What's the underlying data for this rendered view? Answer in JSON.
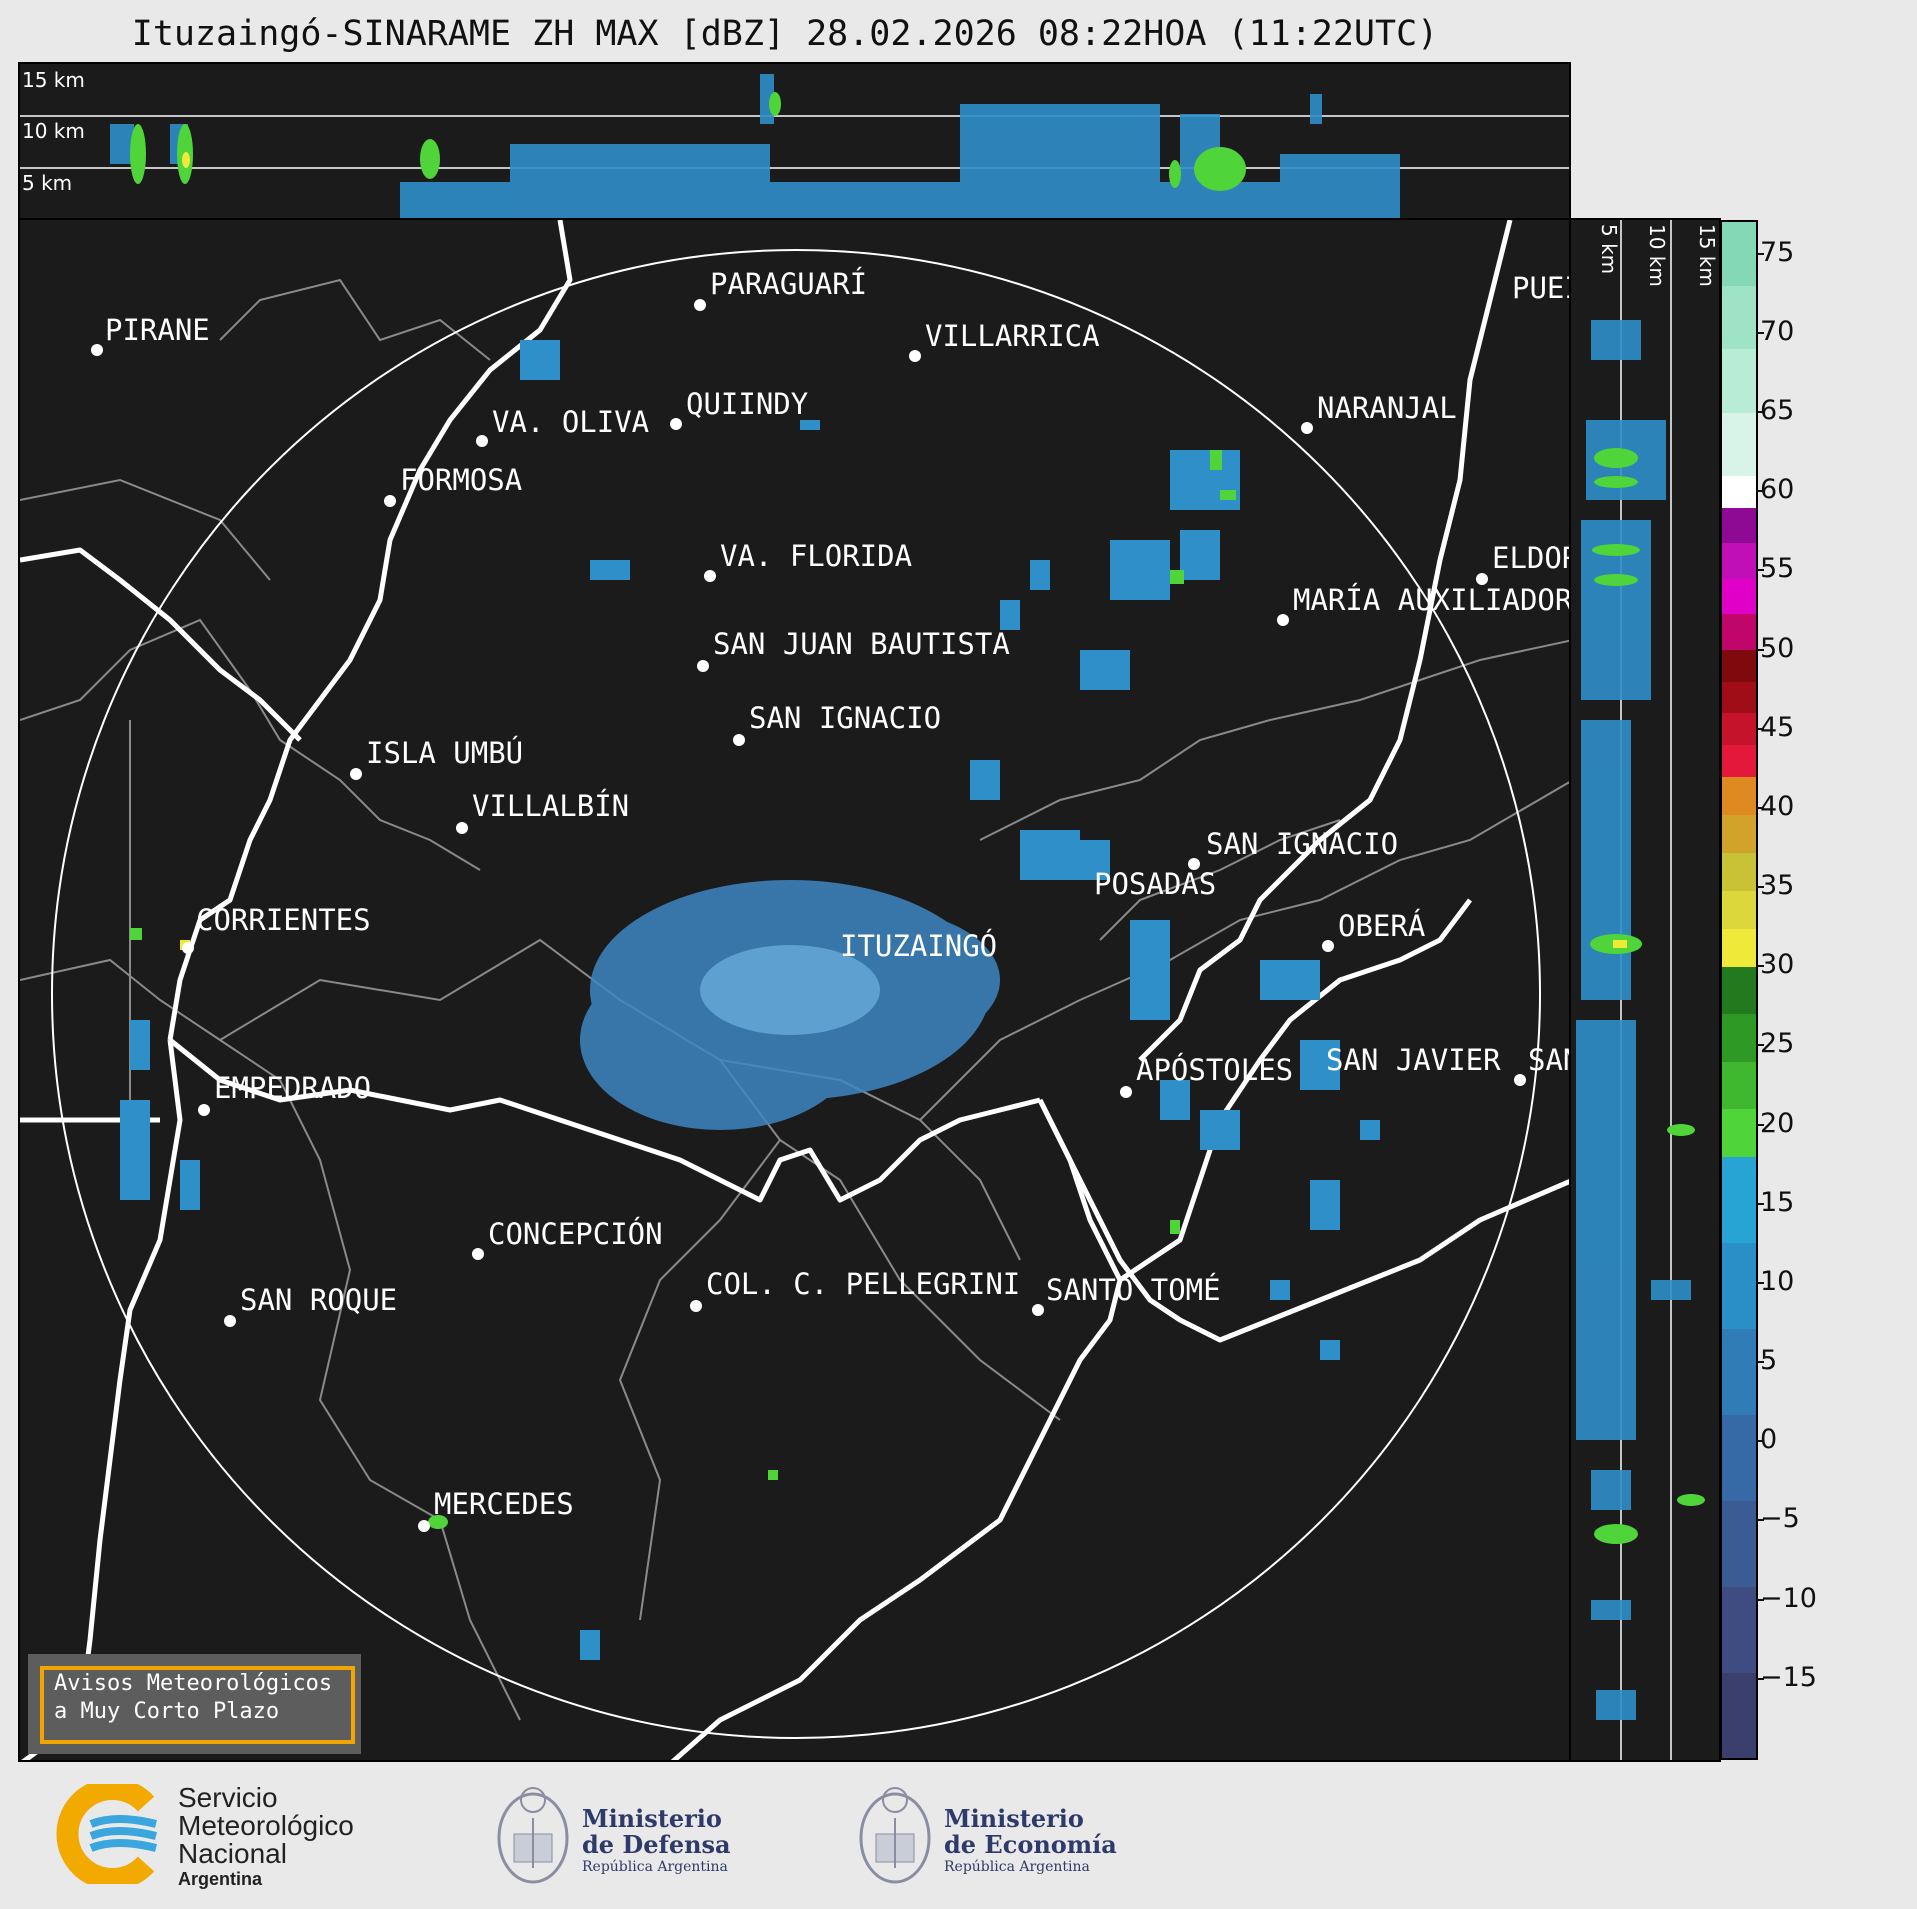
{
  "title": "Ituzaingó-SINARAME ZH MAX [dBZ] 28.02.2026 08:22HOA (11:22UTC)",
  "height_profile_top": {
    "labels": [
      "15 km",
      "10 km",
      "5 km"
    ]
  },
  "height_profile_side": {
    "labels": [
      "5 km",
      "10 km",
      "15 km"
    ]
  },
  "cities": [
    {
      "id": "pirane",
      "name": "PIRANE"
    },
    {
      "id": "paraguari",
      "name": "PARAGUARÍ"
    },
    {
      "id": "villarrica",
      "name": "VILLARRICA"
    },
    {
      "id": "va-oliva",
      "name": "VA. OLIVA"
    },
    {
      "id": "quiindy",
      "name": "QUIINDY"
    },
    {
      "id": "naranjal",
      "name": "NARANJAL"
    },
    {
      "id": "formosa",
      "name": "FORMOSA"
    },
    {
      "id": "va-florida",
      "name": "VA. FLORIDA"
    },
    {
      "id": "eldorado",
      "name": "ELDOR"
    },
    {
      "id": "maria-auxiliadora",
      "name": "MARÍA AUXILIADOR"
    },
    {
      "id": "san-juan-bautista",
      "name": "SAN JUAN BAUTISTA"
    },
    {
      "id": "san-ignacio-py",
      "name": "SAN IGNACIO"
    },
    {
      "id": "isla-umbu",
      "name": "ISLA UMBÚ"
    },
    {
      "id": "villalbin",
      "name": "VILLALBÍN"
    },
    {
      "id": "san-ignacio-ar",
      "name": "SAN IGNACIO"
    },
    {
      "id": "posadas",
      "name": "POSADAS"
    },
    {
      "id": "corrientes",
      "name": "CORRIENTES"
    },
    {
      "id": "ituzaingo",
      "name": "ITUZAINGÓ"
    },
    {
      "id": "obera",
      "name": "OBERÁ"
    },
    {
      "id": "empedrado",
      "name": "EMPEDRADO"
    },
    {
      "id": "apostoles",
      "name": "APÓSTOLES"
    },
    {
      "id": "san-javier",
      "name": "SAN JAVIER"
    },
    {
      "id": "san-partial",
      "name": "SAN"
    },
    {
      "id": "concepcion",
      "name": "CONCEPCIÓN"
    },
    {
      "id": "col-c-pellegrini",
      "name": "COL. C. PELLEGRINI"
    },
    {
      "id": "santo-tome",
      "name": "SANTO TOMÉ"
    },
    {
      "id": "san-roque",
      "name": "SAN ROQUE"
    },
    {
      "id": "mercedes",
      "name": "MERCEDES"
    },
    {
      "id": "puerto-partial",
      "name": "PUEI"
    }
  ],
  "colorbar": {
    "ticks": [
      "75",
      "70",
      "65",
      "60",
      "55",
      "50",
      "45",
      "40",
      "35",
      "30",
      "25",
      "20",
      "15",
      "10",
      "5",
      "0",
      "−5",
      "−10",
      "−15"
    ],
    "range": [
      -20,
      77
    ],
    "bands": [
      {
        "from": -20,
        "to": 18,
        "colors": [
          "#3a3f6e",
          "#3f4c82",
          "#3b5b95",
          "#356aa6",
          "#2f7cb7",
          "#2a8fc6",
          "#27a3d4"
        ]
      },
      {
        "from": 18,
        "to": 30,
        "colors": [
          "#4fd43a",
          "#3fb82f",
          "#2f9926",
          "#237a1e"
        ]
      },
      {
        "from": 30,
        "to": 42,
        "colors": [
          "#efe93a",
          "#dcd73a",
          "#c8c236",
          "#d1a32a",
          "#df8a21"
        ]
      },
      {
        "from": 42,
        "to": 50,
        "colors": [
          "#e3183a",
          "#c4132a",
          "#a10d16",
          "#7f0a0e"
        ]
      },
      {
        "from": 50,
        "to": 59,
        "colors": [
          "#c0066a",
          "#e100c8",
          "#c20eb6",
          "#8e0a94"
        ]
      },
      {
        "from": 59,
        "to": 61,
        "colors": [
          "#ffffff"
        ]
      },
      {
        "from": 61,
        "to": 77,
        "colors": [
          "#d8f3e8",
          "#b9ecd7",
          "#9ee3c6",
          "#84d8b6"
        ]
      }
    ]
  },
  "warning_box": {
    "line1": "Avisos Meteorológicos",
    "line2": "a Muy Corto Plazo"
  },
  "footer": {
    "smn": {
      "line1": "Servicio",
      "line2": "Meteorológico",
      "line3": "Nacional",
      "line4": "Argentina"
    },
    "defensa": {
      "line1": "Ministerio",
      "line2": "de Defensa",
      "line3": "República Argentina"
    },
    "economia": {
      "line1": "Ministerio",
      "line2": "de Economía",
      "line3": "República Argentina"
    }
  },
  "colors": {
    "panel_bg": "#1b1b1b",
    "echo_blue": "#2f8fc9",
    "echo_green": "#4fd43a",
    "border": "#ffffff",
    "warning_border": "#f0a500"
  }
}
